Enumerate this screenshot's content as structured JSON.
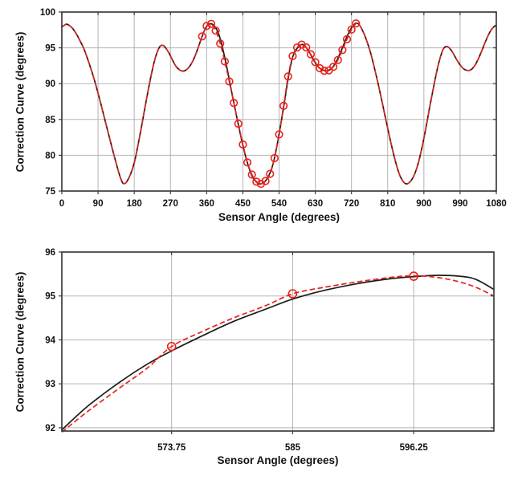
{
  "figure": {
    "background": "#ffffff",
    "grid_color": "#b3b3b3",
    "frame_color": "#3c3c3c",
    "text_color": "#111111",
    "black_line_color": "#1c1c1c",
    "red_color": "#e8221c"
  },
  "chart_data": [
    {
      "type": "line",
      "title": "",
      "xlabel": "Sensor Angle (degrees)",
      "ylabel": "Correction Curve (degrees)",
      "xlim": [
        0,
        1080
      ],
      "ylim": [
        75,
        100
      ],
      "xticks": [
        0,
        90,
        180,
        270,
        360,
        450,
        540,
        630,
        720,
        810,
        900,
        990,
        1080
      ],
      "xtick_labels": [
        "0",
        "90",
        "180",
        "270",
        "360",
        "450",
        "540",
        "630",
        "720",
        "810",
        "900",
        "990",
        "1080"
      ],
      "yticks": [
        75,
        80,
        85,
        90,
        95,
        100
      ],
      "ytick_labels": [
        "75",
        "80",
        "85",
        "90",
        "95",
        "100"
      ],
      "grid": true,
      "legend": "none",
      "series": [
        {
          "name": "actual-correction-curve",
          "style": "solid",
          "color": "#1c1c1c",
          "width": 1.7,
          "points": [
            [
              0,
              97.9
            ],
            [
              6,
              98.15
            ],
            [
              12,
              98.3
            ],
            [
              19,
              98.1
            ],
            [
              27,
              97.7
            ],
            [
              36,
              96.95
            ],
            [
              45,
              96.0
            ],
            [
              55,
              94.85
            ],
            [
              65,
              93.3
            ],
            [
              75,
              91.6
            ],
            [
              85,
              89.7
            ],
            [
              95,
              87.6
            ],
            [
              105,
              85.4
            ],
            [
              115,
              83.2
            ],
            [
              125,
              81.0
            ],
            [
              134,
              79.1
            ],
            [
              142,
              77.5
            ],
            [
              148,
              76.5
            ],
            [
              153,
              76.05
            ],
            [
              160,
              76.2
            ],
            [
              168,
              77.0
            ],
            [
              175,
              78.0
            ],
            [
              182,
              79.4
            ],
            [
              190,
              81.6
            ],
            [
              200,
              84.6
            ],
            [
              210,
              87.7
            ],
            [
              220,
              90.6
            ],
            [
              229,
              92.9
            ],
            [
              237,
              94.4
            ],
            [
              244,
              95.2
            ],
            [
              251,
              95.35
            ],
            [
              258,
              95.0
            ],
            [
              266,
              94.3
            ],
            [
              275,
              93.3
            ],
            [
              284,
              92.4
            ],
            [
              293,
              91.9
            ],
            [
              302,
              91.75
            ],
            [
              311,
              92.0
            ],
            [
              320,
              92.6
            ],
            [
              330,
              93.7
            ],
            [
              340,
              95.2
            ],
            [
              350,
              96.8
            ],
            [
              358,
              97.8
            ],
            [
              365,
              98.3
            ],
            [
              372,
              98.35
            ],
            [
              380,
              98.0
            ],
            [
              388,
              97.2
            ],
            [
              396,
              95.8
            ],
            [
              404,
              93.9
            ],
            [
              413,
              91.5
            ],
            [
              422,
              88.9
            ],
            [
              432,
              86.1
            ],
            [
              442,
              83.4
            ],
            [
              452,
              80.9
            ],
            [
              462,
              78.8
            ],
            [
              472,
              77.2
            ],
            [
              481,
              76.4
            ],
            [
              490,
              76.0
            ],
            [
              498,
              76.05
            ],
            [
              506,
              76.4
            ],
            [
              514,
              77.1
            ],
            [
              522,
              78.2
            ],
            [
              530,
              80.0
            ],
            [
              538,
              82.3
            ],
            [
              546,
              84.9
            ],
            [
              553,
              87.3
            ],
            [
              559,
              89.5
            ],
            [
              564,
              91.2
            ],
            [
              569,
              92.6
            ],
            [
              574,
              93.75
            ],
            [
              580,
              94.5
            ],
            [
              585,
              94.95
            ],
            [
              591,
              95.3
            ],
            [
              597,
              95.47
            ],
            [
              602,
              95.4
            ],
            [
              608,
              95.0
            ],
            [
              614,
              94.5
            ],
            [
              621,
              93.8
            ],
            [
              628,
              93.1
            ],
            [
              635,
              92.5
            ],
            [
              642,
              92.1
            ],
            [
              649,
              91.9
            ],
            [
              656,
              91.8
            ],
            [
              663,
              91.85
            ],
            [
              670,
              92.1
            ],
            [
              677,
              92.6
            ],
            [
              685,
              93.4
            ],
            [
              693,
              94.4
            ],
            [
              701,
              95.5
            ],
            [
              709,
              96.6
            ],
            [
              717,
              97.5
            ],
            [
              724,
              98.1
            ],
            [
              731,
              98.45
            ],
            [
              738,
              98.3
            ],
            [
              744,
              97.8
            ],
            [
              751,
              97.0
            ],
            [
              759,
              95.8
            ],
            [
              768,
              94.2
            ],
            [
              777,
              92.2
            ],
            [
              787,
              89.8
            ],
            [
              797,
              87.2
            ],
            [
              808,
              84.3
            ],
            [
              819,
              81.5
            ],
            [
              830,
              79.0
            ],
            [
              840,
              77.2
            ],
            [
              849,
              76.3
            ],
            [
              856,
              76.0
            ],
            [
              863,
              76.15
            ],
            [
              870,
              76.6
            ],
            [
              878,
              77.5
            ],
            [
              886,
              78.9
            ],
            [
              895,
              81.0
            ],
            [
              905,
              83.8
            ],
            [
              915,
              86.9
            ],
            [
              925,
              89.8
            ],
            [
              934,
              92.2
            ],
            [
              942,
              93.9
            ],
            [
              949,
              94.9
            ],
            [
              956,
              95.2
            ],
            [
              963,
              95.0
            ],
            [
              971,
              94.4
            ],
            [
              980,
              93.5
            ],
            [
              989,
              92.7
            ],
            [
              998,
              92.1
            ],
            [
              1007,
              91.85
            ],
            [
              1016,
              91.9
            ],
            [
              1025,
              92.4
            ],
            [
              1034,
              93.3
            ],
            [
              1044,
              94.6
            ],
            [
              1054,
              96.0
            ],
            [
              1064,
              97.2
            ],
            [
              1073,
              97.9
            ],
            [
              1080,
              98.15
            ]
          ]
        },
        {
          "name": "interpolated-correction-curve",
          "style": "dashed",
          "color": "#e8221c",
          "width": 1.7,
          "compose_from_markers": true
        }
      ],
      "markers": {
        "name": "sampled-correction-points",
        "shape": "open-circle",
        "color": "#e8221c",
        "radius": 4.3,
        "stroke_width": 1.6,
        "points": [
          [
            348.75,
            96.6
          ],
          [
            360,
            98.05
          ],
          [
            371.25,
            98.35
          ],
          [
            382.5,
            97.4
          ],
          [
            393.75,
            95.6
          ],
          [
            405,
            93.1
          ],
          [
            416.25,
            90.3
          ],
          [
            427.5,
            87.3
          ],
          [
            438.75,
            84.4
          ],
          [
            450,
            81.5
          ],
          [
            461.25,
            79.0
          ],
          [
            472.5,
            77.3
          ],
          [
            483.75,
            76.3
          ],
          [
            495,
            76.0
          ],
          [
            506.25,
            76.4
          ],
          [
            517.5,
            77.4
          ],
          [
            528.75,
            79.6
          ],
          [
            540,
            82.9
          ],
          [
            551.25,
            86.9
          ],
          [
            562.5,
            91.0
          ],
          [
            573.75,
            93.85
          ],
          [
            585,
            95.05
          ],
          [
            596.25,
            95.45
          ],
          [
            607.5,
            95.05
          ],
          [
            618.75,
            94.1
          ],
          [
            630,
            93.0
          ],
          [
            641.25,
            92.15
          ],
          [
            652.5,
            91.8
          ],
          [
            663.75,
            91.85
          ],
          [
            675,
            92.35
          ],
          [
            686.25,
            93.3
          ],
          [
            697.5,
            94.7
          ],
          [
            708.75,
            96.2
          ],
          [
            720,
            97.55
          ],
          [
            731.25,
            98.4
          ]
        ]
      }
    },
    {
      "type": "line",
      "title": "",
      "xlabel": "Sensor Angle (degrees)",
      "ylabel": "Correction Curve (degrees)",
      "xlim": [
        563.55,
        603.7
      ],
      "ylim": [
        91.925,
        96
      ],
      "xticks": [
        573.75,
        585,
        596.25
      ],
      "xtick_labels": [
        "573.75",
        "585",
        "596.25"
      ],
      "yticks": [
        92,
        93,
        94,
        95,
        96
      ],
      "ytick_labels": [
        "92",
        "93",
        "94",
        "95",
        "96"
      ],
      "grid": true,
      "legend": "none",
      "series": [
        {
          "name": "actual-correction-curve-zoom",
          "style": "solid",
          "color": "#1c1c1c",
          "width": 1.7,
          "points": [
            [
              563.55,
              91.95
            ],
            [
              566,
              92.5
            ],
            [
              569,
              93.05
            ],
            [
              571.5,
              93.45
            ],
            [
              573.75,
              93.75
            ],
            [
              576.5,
              94.08
            ],
            [
              579.5,
              94.42
            ],
            [
              582.5,
              94.7
            ],
            [
              585,
              94.93
            ],
            [
              588,
              95.13
            ],
            [
              591,
              95.28
            ],
            [
              594,
              95.39
            ],
            [
              596.25,
              95.44
            ],
            [
              598.5,
              95.47
            ],
            [
              600.5,
              95.45
            ],
            [
              602,
              95.38
            ],
            [
              603.7,
              95.15
            ]
          ]
        },
        {
          "name": "interpolated-correction-curve-zoom",
          "style": "dashed",
          "color": "#e8221c",
          "width": 1.7,
          "points": [
            [
              563.55,
              91.9
            ],
            [
              566,
              92.38
            ],
            [
              569,
              92.92
            ],
            [
              571.5,
              93.36
            ],
            [
              573.75,
              93.85
            ],
            [
              576.5,
              94.18
            ],
            [
              579.5,
              94.5
            ],
            [
              582.5,
              94.78
            ],
            [
              585,
              95.05
            ],
            [
              588,
              95.2
            ],
            [
              591,
              95.32
            ],
            [
              594,
              95.42
            ],
            [
              596.25,
              95.46
            ],
            [
              598.5,
              95.42
            ],
            [
              600.5,
              95.32
            ],
            [
              602,
              95.2
            ],
            [
              603.7,
              95.0
            ]
          ]
        }
      ],
      "markers": {
        "name": "sampled-correction-points-zoom",
        "shape": "open-circle",
        "color": "#e8221c",
        "radius": 5.0,
        "stroke_width": 1.6,
        "points": [
          [
            573.75,
            93.85
          ],
          [
            585,
            95.05
          ],
          [
            596.25,
            95.45
          ]
        ]
      }
    }
  ],
  "labels": {
    "top_xlabel": "Sensor Angle (degrees)",
    "top_ylabel": "Correction Curve (degrees)",
    "bottom_xlabel": "Sensor Angle (degrees)",
    "bottom_ylabel": "Correction Curve (degrees)"
  }
}
